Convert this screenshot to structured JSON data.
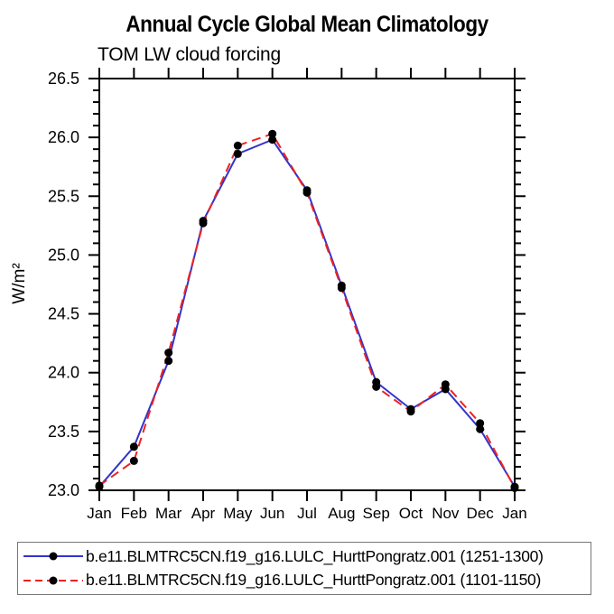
{
  "chart_data": {
    "type": "line",
    "title": "Annual Cycle Global Mean Climatology",
    "subtitle": "TOM LW cloud forcing",
    "ylabel": "W/m²",
    "x_categories": [
      "Jan",
      "Feb",
      "Mar",
      "Apr",
      "May",
      "Jun",
      "Jul",
      "Aug",
      "Sep",
      "Oct",
      "Nov",
      "Dec",
      "Jan"
    ],
    "ylim": [
      23.0,
      26.5
    ],
    "y_major_step": 0.5,
    "y_minor_step": 0.1,
    "grid": false,
    "legend_position": "bottom",
    "axis_color": "#000000",
    "marker_color": "#000000",
    "series": [
      {
        "name": "b.e11.BLMTRC5CN.f19_g16.LULC_HurttPongratz.001 (1251-1300)",
        "color": "#3333cc",
        "style": "solid",
        "marker": "circle",
        "values": [
          23.03,
          23.37,
          24.1,
          25.29,
          25.86,
          25.98,
          25.55,
          24.74,
          23.92,
          23.69,
          23.86,
          23.52,
          23.03
        ]
      },
      {
        "name": "b.e11.BLMTRC5CN.f19_g16.LULC_HurttPongratz.001 (1101-1150)",
        "color": "#ee2222",
        "style": "dashed",
        "marker": "circle",
        "values": [
          23.04,
          23.25,
          24.17,
          25.27,
          25.93,
          26.03,
          25.53,
          24.72,
          23.88,
          23.67,
          23.9,
          23.57,
          23.02
        ]
      }
    ]
  }
}
